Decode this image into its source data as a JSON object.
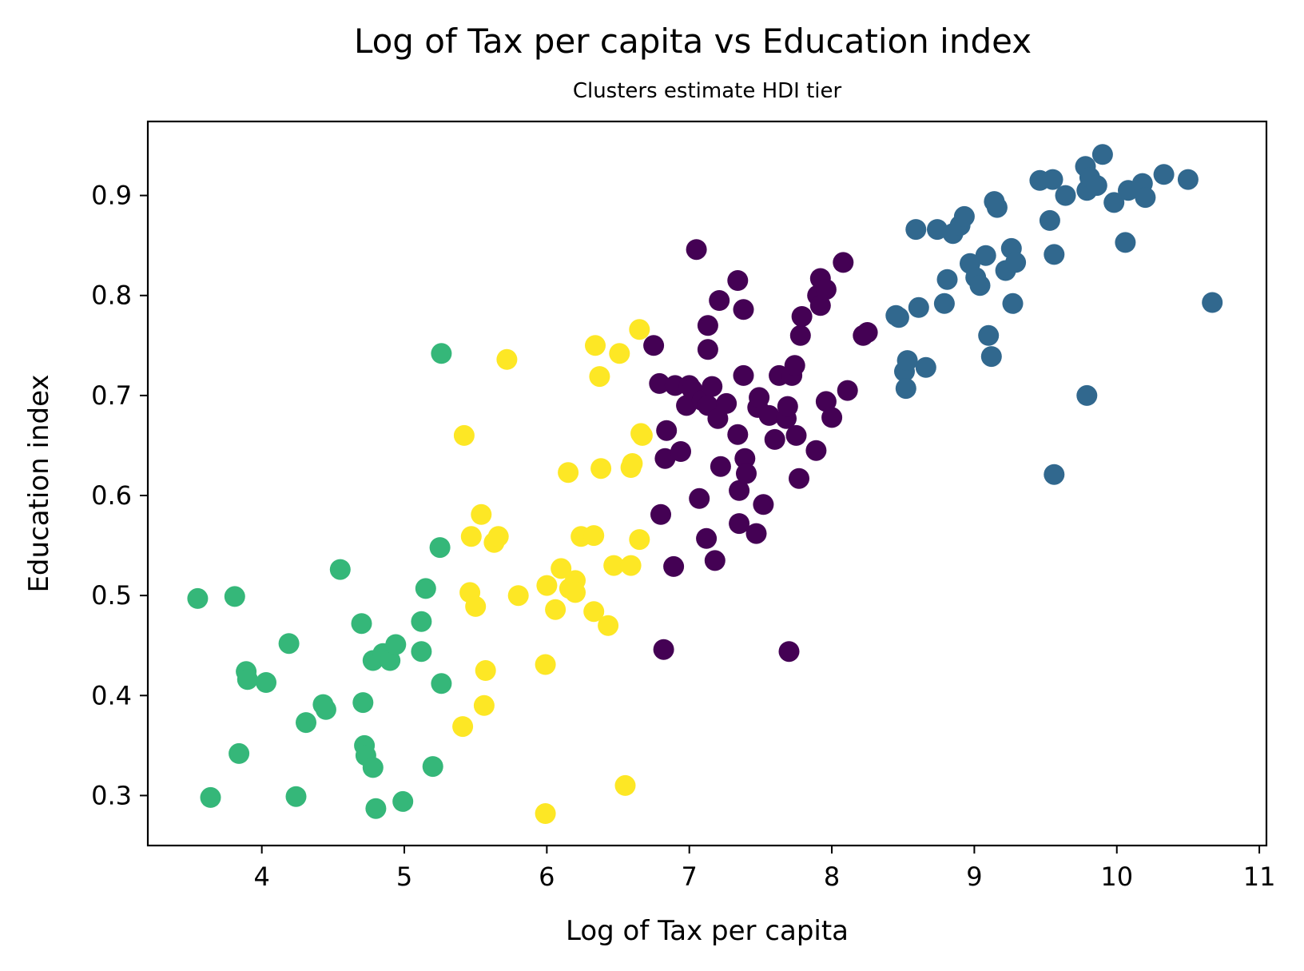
{
  "chart_data": {
    "type": "scatter",
    "title": "Log of Tax per capita vs Education index",
    "subtitle": "Clusters estimate HDI tier",
    "xlabel": "Log of Tax per capita",
    "ylabel": "Education index",
    "xlim": [
      3.2,
      11.05
    ],
    "ylim": [
      0.25,
      0.974
    ],
    "xticks": [
      4,
      5,
      6,
      7,
      8,
      9,
      10,
      11
    ],
    "yticks": [
      0.3,
      0.4,
      0.5,
      0.6,
      0.7,
      0.8,
      0.9
    ],
    "xtick_labels": [
      "4",
      "5",
      "6",
      "7",
      "8",
      "9",
      "10",
      "11"
    ],
    "ytick_labels": [
      "0.3",
      "0.4",
      "0.5",
      "0.6",
      "0.7",
      "0.8",
      "0.9"
    ],
    "grid": false,
    "legend": "none",
    "colormap": "viridis",
    "series": [
      {
        "color": "#35b779",
        "points": [
          [
            3.55,
            0.497
          ],
          [
            3.64,
            0.298
          ],
          [
            3.81,
            0.499
          ],
          [
            3.84,
            0.342
          ],
          [
            3.89,
            0.424
          ],
          [
            3.9,
            0.416
          ],
          [
            4.03,
            0.413
          ],
          [
            4.19,
            0.452
          ],
          [
            4.24,
            0.299
          ],
          [
            4.31,
            0.373
          ],
          [
            4.43,
            0.391
          ],
          [
            4.45,
            0.386
          ],
          [
            4.55,
            0.526
          ],
          [
            4.7,
            0.472
          ],
          [
            4.71,
            0.393
          ],
          [
            4.72,
            0.35
          ],
          [
            4.73,
            0.34
          ],
          [
            4.78,
            0.328
          ],
          [
            4.8,
            0.287
          ],
          [
            4.78,
            0.435
          ],
          [
            4.85,
            0.442
          ],
          [
            4.9,
            0.435
          ],
          [
            4.94,
            0.451
          ],
          [
            4.99,
            0.294
          ],
          [
            5.12,
            0.474
          ],
          [
            5.12,
            0.444
          ],
          [
            5.15,
            0.507
          ],
          [
            5.2,
            0.329
          ],
          [
            5.25,
            0.548
          ],
          [
            5.26,
            0.412
          ],
          [
            5.26,
            0.742
          ]
        ]
      },
      {
        "color": "#fde725",
        "points": [
          [
            5.41,
            0.369
          ],
          [
            5.42,
            0.66
          ],
          [
            5.46,
            0.503
          ],
          [
            5.47,
            0.559
          ],
          [
            5.5,
            0.489
          ],
          [
            5.54,
            0.581
          ],
          [
            5.56,
            0.39
          ],
          [
            5.57,
            0.425
          ],
          [
            5.63,
            0.553
          ],
          [
            5.66,
            0.559
          ],
          [
            5.72,
            0.736
          ],
          [
            5.8,
            0.5
          ],
          [
            5.99,
            0.282
          ],
          [
            5.99,
            0.431
          ],
          [
            6.0,
            0.51
          ],
          [
            6.06,
            0.486
          ],
          [
            6.1,
            0.527
          ],
          [
            6.15,
            0.623
          ],
          [
            6.16,
            0.507
          ],
          [
            6.2,
            0.515
          ],
          [
            6.2,
            0.503
          ],
          [
            6.24,
            0.559
          ],
          [
            6.33,
            0.56
          ],
          [
            6.33,
            0.484
          ],
          [
            6.34,
            0.75
          ],
          [
            6.37,
            0.719
          ],
          [
            6.38,
            0.627
          ],
          [
            6.43,
            0.47
          ],
          [
            6.47,
            0.53
          ],
          [
            6.51,
            0.742
          ],
          [
            6.55,
            0.31
          ],
          [
            6.59,
            0.53
          ],
          [
            6.59,
            0.628
          ],
          [
            6.6,
            0.632
          ],
          [
            6.65,
            0.766
          ],
          [
            6.65,
            0.556
          ],
          [
            6.66,
            0.662
          ],
          [
            6.67,
            0.66
          ]
        ]
      },
      {
        "color": "#440154",
        "points": [
          [
            6.75,
            0.75
          ],
          [
            6.79,
            0.712
          ],
          [
            6.8,
            0.581
          ],
          [
            6.82,
            0.446
          ],
          [
            6.83,
            0.637
          ],
          [
            6.84,
            0.665
          ],
          [
            6.89,
            0.529
          ],
          [
            6.9,
            0.71
          ],
          [
            6.94,
            0.644
          ],
          [
            6.98,
            0.69
          ],
          [
            7.0,
            0.71
          ],
          [
            7.02,
            0.706
          ],
          [
            7.05,
            0.846
          ],
          [
            7.07,
            0.597
          ],
          [
            7.09,
            0.695
          ],
          [
            7.12,
            0.557
          ],
          [
            7.13,
            0.77
          ],
          [
            7.13,
            0.746
          ],
          [
            7.13,
            0.69
          ],
          [
            7.16,
            0.709
          ],
          [
            7.18,
            0.535
          ],
          [
            7.2,
            0.677
          ],
          [
            7.21,
            0.795
          ],
          [
            7.22,
            0.629
          ],
          [
            7.26,
            0.692
          ],
          [
            7.34,
            0.661
          ],
          [
            7.34,
            0.815
          ],
          [
            7.35,
            0.605
          ],
          [
            7.35,
            0.572
          ],
          [
            7.38,
            0.786
          ],
          [
            7.38,
            0.72
          ],
          [
            7.39,
            0.637
          ],
          [
            7.4,
            0.622
          ],
          [
            7.47,
            0.562
          ],
          [
            7.48,
            0.688
          ],
          [
            7.49,
            0.698
          ],
          [
            7.52,
            0.591
          ],
          [
            7.56,
            0.68
          ],
          [
            7.6,
            0.656
          ],
          [
            7.63,
            0.72
          ],
          [
            7.68,
            0.677
          ],
          [
            7.69,
            0.689
          ],
          [
            7.7,
            0.444
          ],
          [
            7.72,
            0.72
          ],
          [
            7.74,
            0.73
          ],
          [
            7.75,
            0.66
          ],
          [
            7.77,
            0.617
          ],
          [
            7.78,
            0.76
          ],
          [
            7.79,
            0.779
          ],
          [
            7.89,
            0.645
          ],
          [
            7.9,
            0.8
          ],
          [
            7.92,
            0.79
          ],
          [
            7.92,
            0.817
          ],
          [
            7.96,
            0.806
          ],
          [
            7.96,
            0.694
          ],
          [
            8.0,
            0.678
          ],
          [
            8.08,
            0.833
          ],
          [
            8.11,
            0.705
          ],
          [
            8.22,
            0.76
          ],
          [
            8.25,
            0.763
          ]
        ]
      },
      {
        "color": "#31688e",
        "points": [
          [
            8.45,
            0.78
          ],
          [
            8.47,
            0.778
          ],
          [
            8.51,
            0.724
          ],
          [
            8.52,
            0.707
          ],
          [
            8.53,
            0.735
          ],
          [
            8.59,
            0.866
          ],
          [
            8.61,
            0.788
          ],
          [
            8.66,
            0.728
          ],
          [
            8.74,
            0.866
          ],
          [
            8.79,
            0.792
          ],
          [
            8.81,
            0.816
          ],
          [
            8.85,
            0.862
          ],
          [
            8.9,
            0.87
          ],
          [
            8.93,
            0.879
          ],
          [
            8.97,
            0.832
          ],
          [
            9.01,
            0.818
          ],
          [
            9.04,
            0.81
          ],
          [
            9.08,
            0.84
          ],
          [
            9.1,
            0.76
          ],
          [
            9.12,
            0.739
          ],
          [
            9.14,
            0.894
          ],
          [
            9.16,
            0.888
          ],
          [
            9.22,
            0.825
          ],
          [
            9.26,
            0.847
          ],
          [
            9.27,
            0.792
          ],
          [
            9.29,
            0.833
          ],
          [
            9.46,
            0.915
          ],
          [
            9.53,
            0.875
          ],
          [
            9.55,
            0.916
          ],
          [
            9.56,
            0.621
          ],
          [
            9.56,
            0.841
          ],
          [
            9.64,
            0.9
          ],
          [
            9.78,
            0.929
          ],
          [
            9.79,
            0.7
          ],
          [
            9.79,
            0.905
          ],
          [
            9.81,
            0.918
          ],
          [
            9.86,
            0.91
          ],
          [
            9.9,
            0.941
          ],
          [
            9.98,
            0.893
          ],
          [
            10.06,
            0.853
          ],
          [
            10.08,
            0.905
          ],
          [
            10.18,
            0.912
          ],
          [
            10.2,
            0.898
          ],
          [
            10.33,
            0.921
          ],
          [
            10.5,
            0.916
          ],
          [
            10.67,
            0.793
          ]
        ]
      }
    ]
  }
}
